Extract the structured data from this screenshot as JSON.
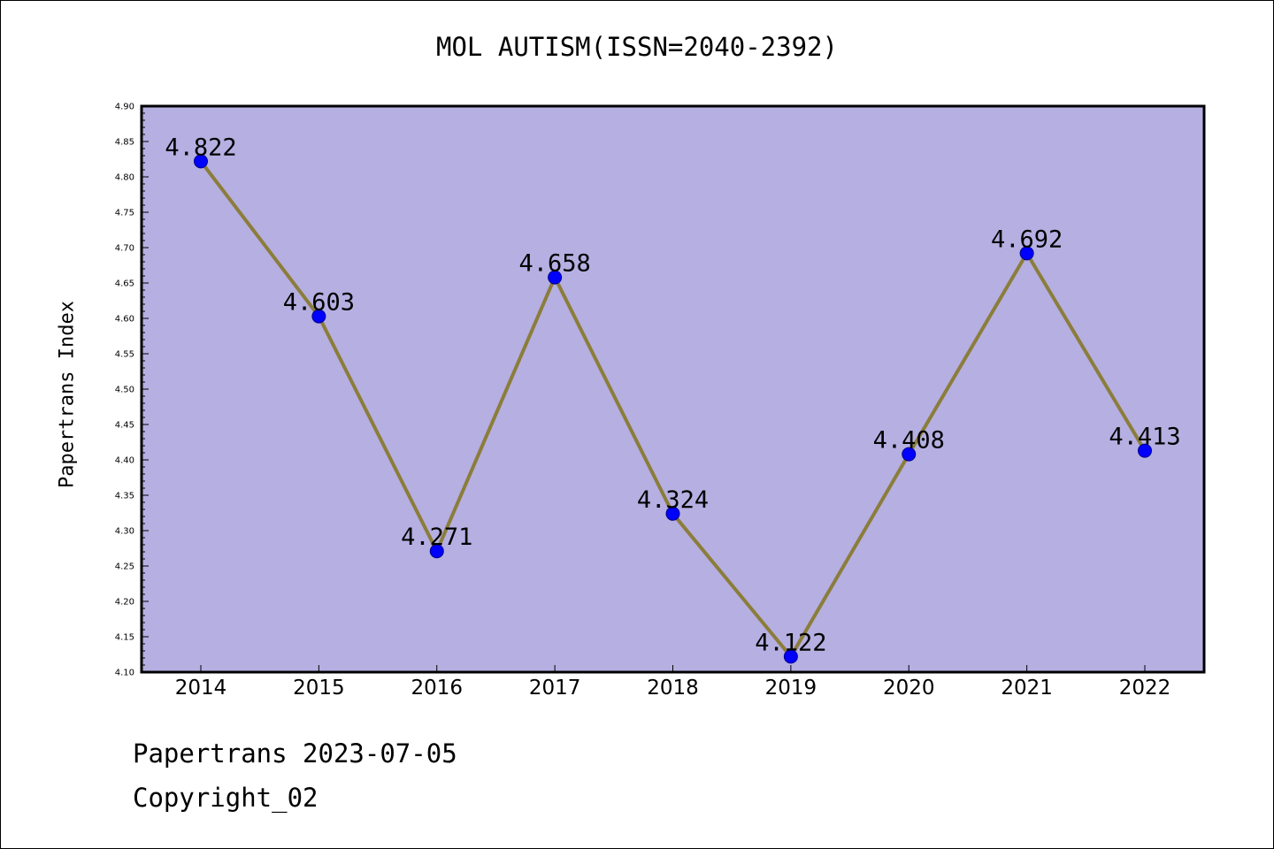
{
  "chart_data": {
    "type": "line",
    "title": "MOL AUTISM(ISSN=2040-2392)",
    "xlabel": "",
    "ylabel": "Papertrans Index",
    "categories": [
      "2014",
      "2015",
      "2016",
      "2017",
      "2018",
      "2019",
      "2020",
      "2021",
      "2022"
    ],
    "series": [
      {
        "values": [
          4.822,
          4.603,
          4.271,
          4.658,
          4.324,
          4.122,
          4.408,
          4.692,
          4.413
        ],
        "data_labels": [
          "4.822",
          "4.603",
          "4.271",
          "4.658",
          "4.324",
          "4.122",
          "4.408",
          "4.692",
          "4.413"
        ]
      }
    ],
    "ylim": [
      4.1,
      4.9
    ],
    "yticks": [
      "4.10",
      "4.15",
      "4.20",
      "4.25",
      "4.30",
      "4.35",
      "4.40",
      "4.45",
      "4.50",
      "4.55",
      "4.60",
      "4.65",
      "4.70",
      "4.75",
      "4.80",
      "4.85",
      "4.90"
    ],
    "grid": false,
    "legend": "none",
    "colors": {
      "plot_background": "#b5afe2",
      "line": "#8b7d3a",
      "marker": "#0000ff",
      "marker_edge": "#00008b"
    }
  },
  "footer": {
    "line1": "Papertrans 2023-07-05",
    "line2": "Copyright_02"
  }
}
